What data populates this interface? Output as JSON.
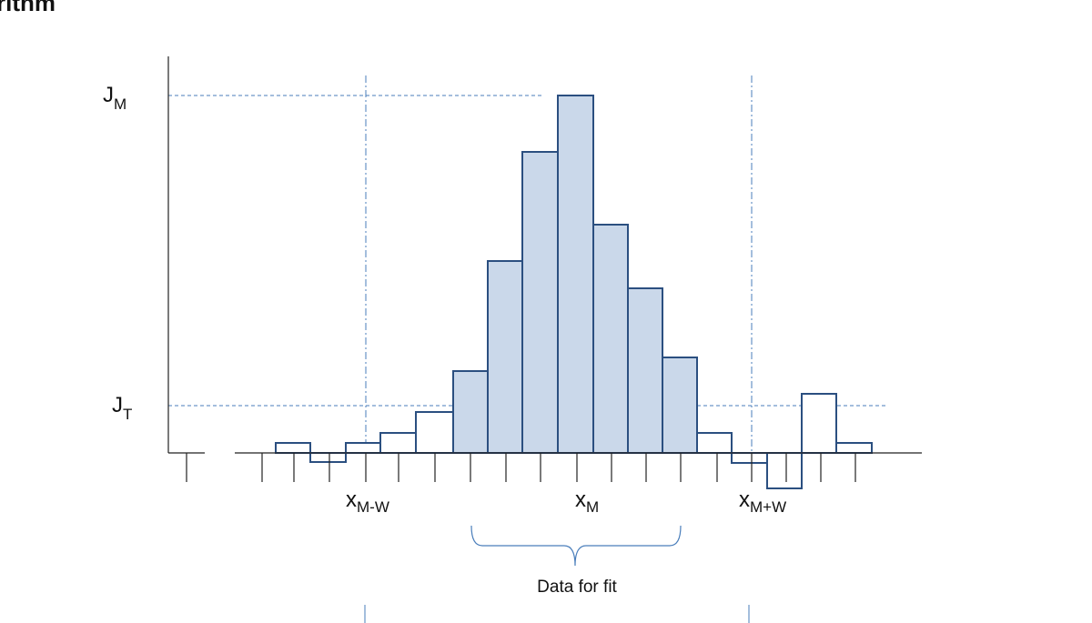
{
  "title": "rithm",
  "labels": {
    "j_max": {
      "main": "J",
      "sub": "M"
    },
    "j_threshold": {
      "main": "J",
      "sub": "T"
    },
    "x_left": {
      "main": "x",
      "sub": "M-W"
    },
    "x_max": {
      "main": "x",
      "sub": "M"
    },
    "x_right": {
      "main": "x",
      "sub": "M+W"
    }
  },
  "brace_label": "Data for fit"
}
